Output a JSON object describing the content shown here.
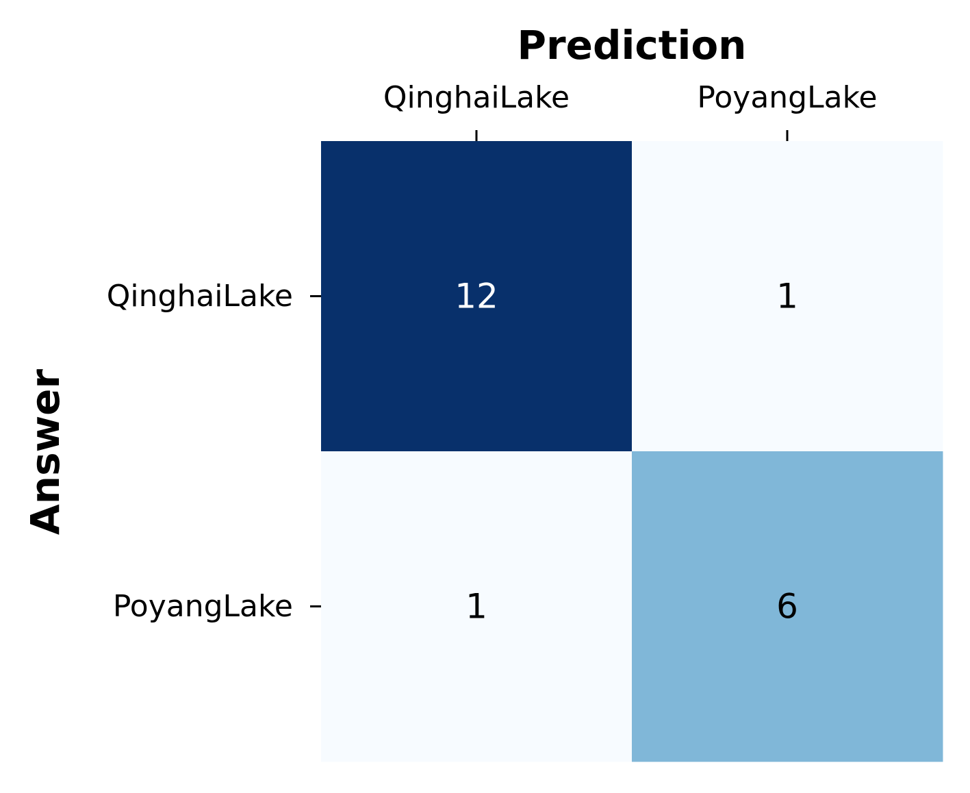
{
  "chart_data": {
    "type": "heatmap",
    "x_axis_title": "Prediction",
    "y_axis_title": "Answer",
    "x_categories": [
      "QinghaiLake",
      "PoyangLake"
    ],
    "y_categories": [
      "QinghaiLake",
      "PoyangLake"
    ],
    "values": [
      [
        12,
        1
      ],
      [
        1,
        6
      ]
    ],
    "colormap": "Blues",
    "value_range": [
      1,
      12
    ],
    "x_axis_position": "top",
    "grid": false,
    "colors": {
      "low": "#f7fbff",
      "mid": "#80b7d8",
      "high": "#08306b",
      "text_on_dark": "#ffffff",
      "text_on_light": "#000000"
    }
  }
}
